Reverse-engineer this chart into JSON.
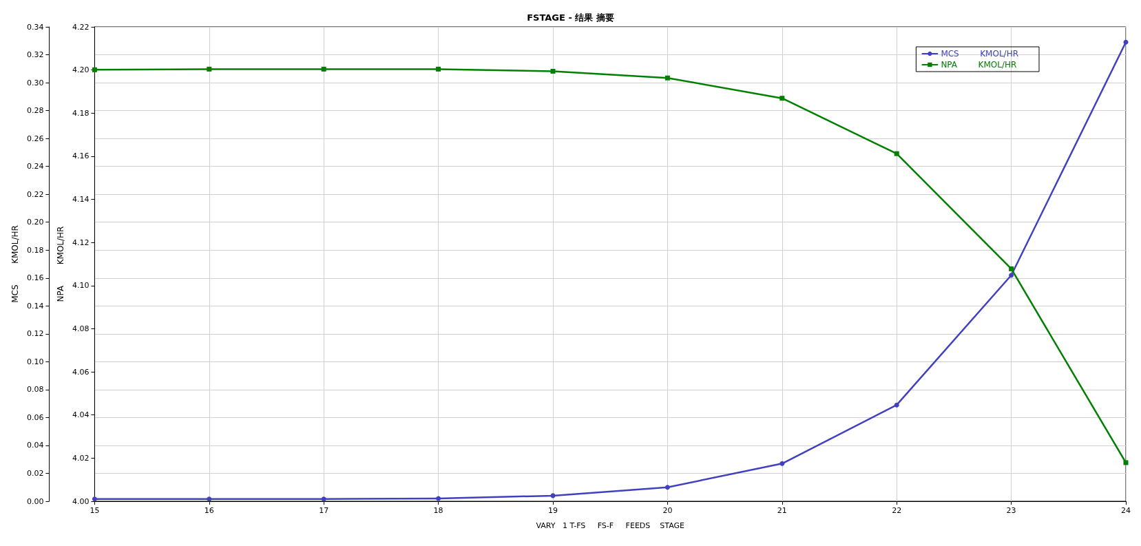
{
  "chart_data": {
    "type": "line",
    "title": "FSTAGE - 结果 摘要",
    "xlabel": "VARY   1 T-FS     FS-F     FEEDS    STAGE",
    "ylabel": "MCS        KMOL/HR",
    "y2label": "NPA        KMOL/HR",
    "x": [
      15,
      16,
      17,
      18,
      19,
      20,
      21,
      22,
      23,
      24
    ],
    "series": [
      {
        "name": "MCS        KMOL/HR",
        "color": "#4040c0",
        "marker": "circle",
        "values": [
          0.0016,
          0.0016,
          0.0016,
          0.002,
          0.004,
          0.01,
          0.027,
          0.069,
          0.162,
          0.329
        ]
      },
      {
        "name": "NPA        KMOL/HR",
        "color": "#008000",
        "marker": "square",
        "axis": "y2",
        "values": [
          4.2001,
          4.2004,
          4.2004,
          4.2004,
          4.1994,
          4.1963,
          4.1869,
          4.1612,
          4.1078,
          4.0179
        ]
      }
    ],
    "xlim": [
      15,
      24
    ],
    "xticks": [
      15,
      16,
      17,
      18,
      19,
      20,
      21,
      22,
      23,
      24
    ],
    "ylim": [
      0,
      0.34
    ],
    "yticks": [
      {
        "value": 0,
        "label": "0.00"
      },
      0.02,
      0.04,
      0.06,
      0.08,
      {
        "value": 0.1,
        "label": "0.10"
      },
      0.12,
      0.14,
      0.16,
      0.18,
      {
        "value": 0.2,
        "label": "0.20"
      },
      0.22,
      0.24,
      0.26,
      0.28,
      {
        "value": 0.3,
        "label": "0.30"
      },
      0.32,
      0.34
    ],
    "y2lim": [
      4,
      4.22
    ],
    "y2ticks": [
      {
        "value": 4,
        "label": "4.00"
      },
      4.02,
      4.04,
      4.06,
      4.08,
      {
        "value": 4.1,
        "label": "4.10"
      },
      4.12,
      4.14,
      4.16,
      4.18,
      {
        "value": 4.2,
        "label": "4.20"
      },
      4.22
    ],
    "grid": true,
    "legend": "top right",
    "line_style": "solid"
  }
}
